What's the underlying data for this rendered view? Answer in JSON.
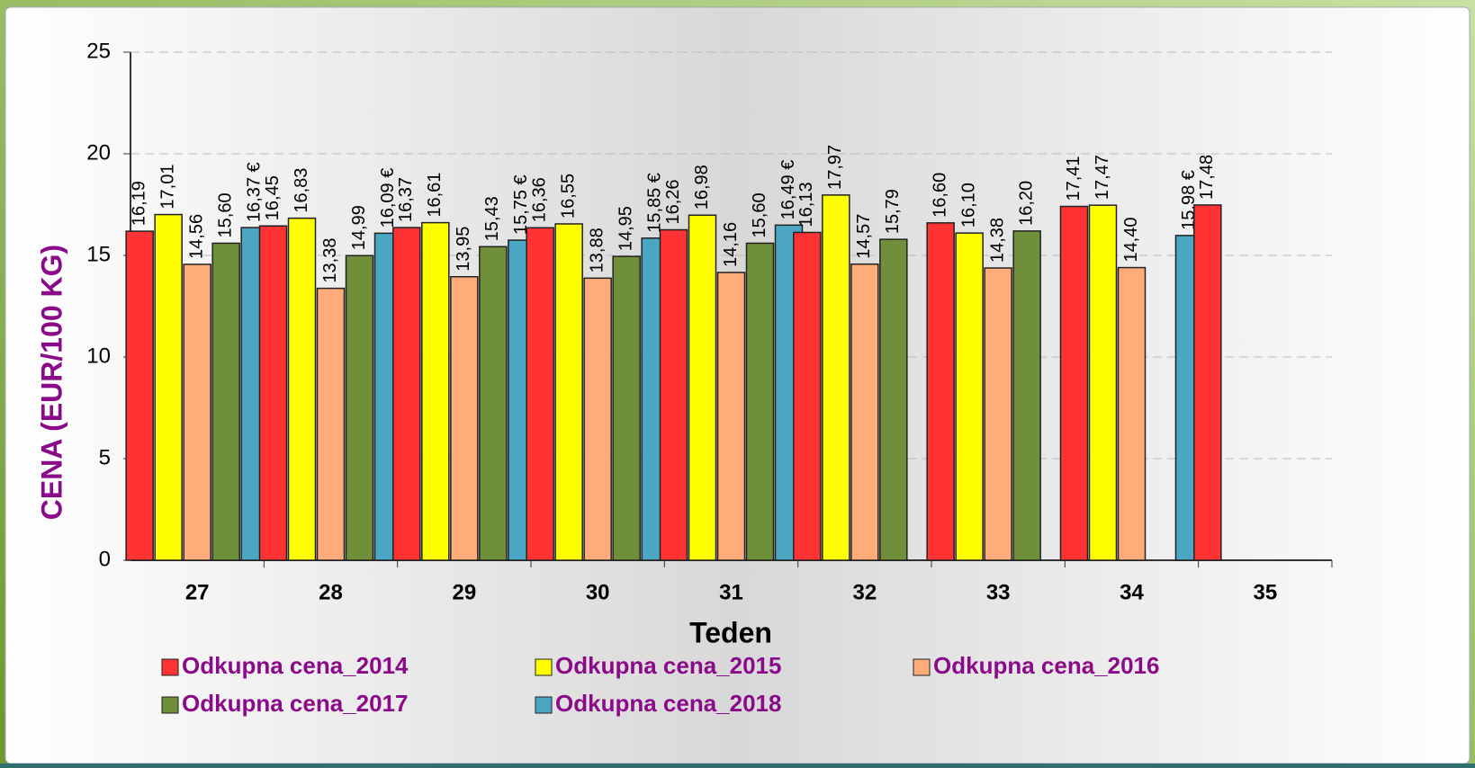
{
  "chart_data": {
    "type": "bar",
    "y_label": "CENA (EUR/100 KG)",
    "x_label": "Teden",
    "categories": [
      "27",
      "28",
      "29",
      "30",
      "31",
      "32",
      "33",
      "34",
      "35"
    ],
    "series": [
      {
        "name": "Odkupna cena_2014",
        "color": "#ff3333",
        "values": [
          16.19,
          16.45,
          16.37,
          16.36,
          16.26,
          16.13,
          16.6,
          17.41,
          17.48
        ],
        "value_labels": [
          "16,19",
          "16,45",
          "16,37",
          "16,36",
          "16,26",
          "16,13",
          "16,60",
          "17,41",
          "17,48"
        ]
      },
      {
        "name": "Odkupna cena_2015",
        "color": "#ffff00",
        "values": [
          17.01,
          16.83,
          16.61,
          16.55,
          16.98,
          17.97,
          16.1,
          17.47,
          null
        ],
        "value_labels": [
          "17,01",
          "16,83",
          "16,61",
          "16,55",
          "16,98",
          "17,97",
          "16,10",
          "17,47",
          null
        ]
      },
      {
        "name": "Odkupna cena_2016",
        "color": "#ffab7a",
        "values": [
          14.56,
          13.38,
          13.95,
          13.88,
          14.16,
          14.57,
          14.38,
          14.4,
          null
        ],
        "value_labels": [
          "14,56",
          "13,38",
          "13,95",
          "13,88",
          "14,16",
          "14,57",
          "14,38",
          "14,40",
          null
        ]
      },
      {
        "name": "Odkupna cena_2017",
        "color": "#6f8f3a",
        "values": [
          15.6,
          14.99,
          15.43,
          14.95,
          15.6,
          15.79,
          16.2,
          null,
          null
        ],
        "value_labels": [
          "15,60",
          "14,99",
          "15,43",
          "14,95",
          "15,60",
          "15,79",
          "16,20",
          null,
          null
        ]
      },
      {
        "name": "Odkupna cena_2018",
        "color": "#4aa6c2",
        "values": [
          16.37,
          16.09,
          15.75,
          15.85,
          16.49,
          null,
          null,
          15.98,
          null
        ],
        "value_labels": [
          "16,37 €",
          "16,09 €",
          "15,75 €",
          "15,85 €",
          "16,49 €",
          null,
          null,
          "15,98 €",
          null
        ]
      }
    ],
    "ylim": [
      0,
      25
    ],
    "yticks": [
      0,
      5,
      10,
      15,
      20,
      25
    ],
    "grid": true
  }
}
